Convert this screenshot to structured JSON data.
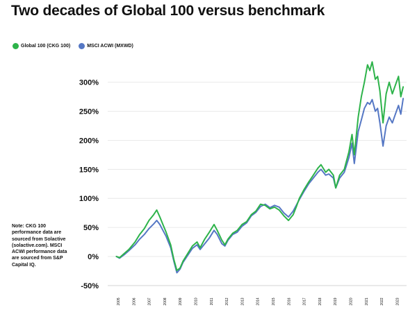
{
  "title": "Two decades of Global 100 versus benchmark",
  "note": "Note: CKG 100 performance data are sourced from Solactive (solactive.com). MSCI ACWI performance data are sourced from S&P Capital IQ.",
  "chart_data": {
    "type": "line",
    "title": "Two decades of Global 100 versus benchmark",
    "xlabel": "",
    "ylabel": "",
    "xlim": [
      2004.6,
      2023.4
    ],
    "ylim": [
      -50,
      340
    ],
    "grid": "horizontal",
    "legend_position": "top-left",
    "y_ticks": [
      -50,
      0,
      50,
      100,
      150,
      200,
      250,
      300
    ],
    "y_tick_labels": [
      "-50%",
      "0%",
      "50%",
      "100%",
      "150%",
      "200%",
      "250%",
      "300%"
    ],
    "x_ticks": [
      2005,
      2006,
      2007,
      2008,
      2009,
      2010,
      2011,
      2012,
      2013,
      2014,
      2015,
      2016,
      2017,
      2018,
      2019,
      2020,
      2021,
      2022,
      2023
    ],
    "x_tick_labels": [
      "2005",
      "2006",
      "2007",
      "2008",
      "2009",
      "2010",
      "2011",
      "2012",
      "2013",
      "2014",
      "2015",
      "2016",
      "2017",
      "2018",
      "2019",
      "2020",
      "2021",
      "2022",
      "2023"
    ],
    "series": [
      {
        "name": "Global 100 (CKG 100)",
        "color": "#2db34a",
        "x": [
          2004.8,
          2005.0,
          2005.3,
          2005.6,
          2006.0,
          2006.3,
          2006.6,
          2006.9,
          2007.2,
          2007.4,
          2007.6,
          2007.8,
          2008.0,
          2008.3,
          2008.5,
          2008.7,
          2008.9,
          2009.1,
          2009.4,
          2009.7,
          2010.0,
          2010.2,
          2010.5,
          2010.8,
          2011.1,
          2011.3,
          2011.6,
          2011.8,
          2012.0,
          2012.3,
          2012.6,
          2012.9,
          2013.2,
          2013.5,
          2013.8,
          2014.1,
          2014.4,
          2014.7,
          2015.0,
          2015.3,
          2015.6,
          2015.9,
          2016.2,
          2016.4,
          2016.6,
          2016.9,
          2017.2,
          2017.5,
          2017.8,
          2018.0,
          2018.3,
          2018.5,
          2018.8,
          2018.95,
          2019.2,
          2019.5,
          2019.8,
          2020.0,
          2020.15,
          2020.4,
          2020.6,
          2020.8,
          2021.0,
          2021.15,
          2021.3,
          2021.5,
          2021.65,
          2021.8,
          2022.0,
          2022.2,
          2022.4,
          2022.6,
          2022.8,
          2023.0,
          2023.15,
          2023.3
        ],
        "values": [
          0,
          -2,
          5,
          12,
          25,
          38,
          48,
          62,
          72,
          80,
          68,
          55,
          42,
          20,
          -5,
          -24,
          -20,
          -8,
          5,
          18,
          25,
          15,
          30,
          42,
          55,
          45,
          28,
          20,
          30,
          40,
          45,
          55,
          60,
          72,
          78,
          90,
          88,
          82,
          85,
          80,
          70,
          62,
          72,
          85,
          100,
          115,
          128,
          140,
          152,
          158,
          145,
          150,
          140,
          118,
          140,
          150,
          180,
          210,
          175,
          240,
          275,
          300,
          330,
          320,
          335,
          305,
          310,
          285,
          230,
          280,
          300,
          280,
          295,
          310,
          275,
          292
        ]
      },
      {
        "name": "MSCI ACWI (MXWD)",
        "color": "#5577c4",
        "x": [
          2004.8,
          2005.0,
          2005.3,
          2005.6,
          2006.0,
          2006.3,
          2006.6,
          2006.9,
          2007.2,
          2007.4,
          2007.6,
          2007.8,
          2008.0,
          2008.3,
          2008.5,
          2008.7,
          2008.9,
          2009.1,
          2009.4,
          2009.7,
          2010.0,
          2010.2,
          2010.5,
          2010.8,
          2011.1,
          2011.3,
          2011.6,
          2011.8,
          2012.0,
          2012.3,
          2012.6,
          2012.9,
          2013.2,
          2013.5,
          2013.8,
          2014.1,
          2014.4,
          2014.7,
          2015.0,
          2015.3,
          2015.6,
          2015.9,
          2016.2,
          2016.4,
          2016.6,
          2016.9,
          2017.2,
          2017.5,
          2017.8,
          2018.0,
          2018.3,
          2018.5,
          2018.8,
          2018.95,
          2019.2,
          2019.5,
          2019.8,
          2020.0,
          2020.15,
          2020.4,
          2020.6,
          2020.8,
          2021.0,
          2021.15,
          2021.3,
          2021.5,
          2021.65,
          2021.8,
          2022.0,
          2022.2,
          2022.4,
          2022.6,
          2022.8,
          2023.0,
          2023.15,
          2023.3
        ],
        "values": [
          0,
          -3,
          3,
          10,
          20,
          30,
          38,
          48,
          56,
          62,
          55,
          45,
          35,
          15,
          -8,
          -28,
          -22,
          -10,
          2,
          14,
          20,
          12,
          22,
          32,
          45,
          38,
          22,
          18,
          28,
          38,
          42,
          52,
          58,
          70,
          76,
          86,
          90,
          84,
          88,
          85,
          75,
          68,
          78,
          88,
          98,
          112,
          125,
          135,
          145,
          150,
          140,
          142,
          135,
          118,
          135,
          145,
          170,
          195,
          160,
          215,
          235,
          255,
          265,
          262,
          270,
          250,
          255,
          230,
          190,
          225,
          240,
          230,
          245,
          260,
          245,
          272
        ]
      }
    ]
  }
}
